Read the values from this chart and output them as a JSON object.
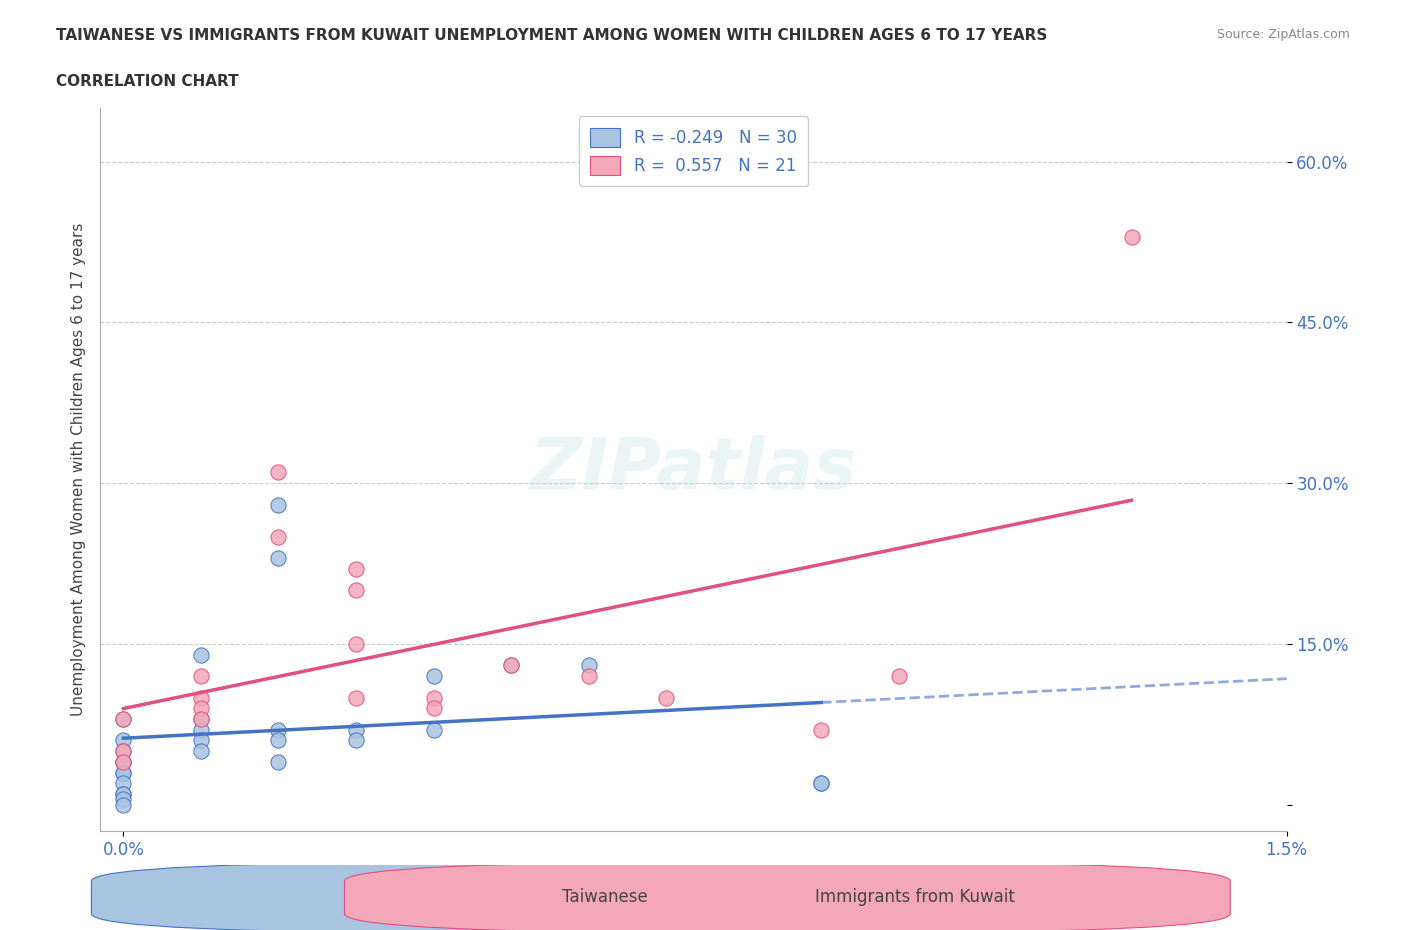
{
  "title": "TAIWANESE VS IMMIGRANTS FROM KUWAIT UNEMPLOYMENT AMONG WOMEN WITH CHILDREN AGES 6 TO 17 YEARS",
  "subtitle": "CORRELATION CHART",
  "source": "Source: ZipAtlas.com",
  "xlabel": "",
  "ylabel": "Unemployment Among Women with Children Ages 6 to 17 years",
  "xlim": [
    0.0,
    0.015
  ],
  "ylim": [
    -0.02,
    0.65
  ],
  "x_ticks": [
    0.0,
    0.015
  ],
  "x_tick_labels": [
    "0.0%",
    "1.5%"
  ],
  "y_ticks": [
    0.0,
    0.15,
    0.3,
    0.45,
    0.6
  ],
  "y_tick_labels": [
    "",
    "15.0%",
    "30.0%",
    "45.0%",
    "60.0%"
  ],
  "watermark": "ZIPatlas",
  "legend_r1": "R = -0.249",
  "legend_n1": "N = 30",
  "legend_r2": "R =  0.557",
  "legend_n2": "N = 21",
  "color_taiwanese": "#a8c4e0",
  "color_kuwait": "#f4a7b9",
  "line_color_taiwanese": "#4472c4",
  "line_color_kuwait": "#e05080",
  "background_color": "#ffffff",
  "taiwanese_x": [
    0.0,
    0.0,
    0.0,
    0.0,
    0.0,
    0.0,
    0.0,
    0.0,
    0.0,
    0.0,
    0.0,
    0.0,
    0.001,
    0.001,
    0.001,
    0.001,
    0.001,
    0.002,
    0.002,
    0.002,
    0.002,
    0.002,
    0.003,
    0.003,
    0.004,
    0.004,
    0.005,
    0.006,
    0.009,
    0.009
  ],
  "taiwanese_y": [
    0.08,
    0.06,
    0.05,
    0.04,
    0.04,
    0.03,
    0.03,
    0.02,
    0.01,
    0.01,
    0.005,
    0.0,
    0.14,
    0.08,
    0.07,
    0.06,
    0.05,
    0.28,
    0.23,
    0.07,
    0.06,
    0.04,
    0.07,
    0.06,
    0.12,
    0.07,
    0.13,
    0.13,
    0.02,
    0.02
  ],
  "kuwait_x": [
    0.0,
    0.0,
    0.0,
    0.001,
    0.001,
    0.001,
    0.001,
    0.002,
    0.002,
    0.003,
    0.003,
    0.003,
    0.003,
    0.004,
    0.004,
    0.005,
    0.006,
    0.007,
    0.009,
    0.01,
    0.013
  ],
  "kuwait_y": [
    0.08,
    0.05,
    0.04,
    0.12,
    0.1,
    0.09,
    0.08,
    0.31,
    0.25,
    0.22,
    0.2,
    0.15,
    0.1,
    0.1,
    0.09,
    0.13,
    0.12,
    0.1,
    0.07,
    0.12,
    0.53
  ]
}
